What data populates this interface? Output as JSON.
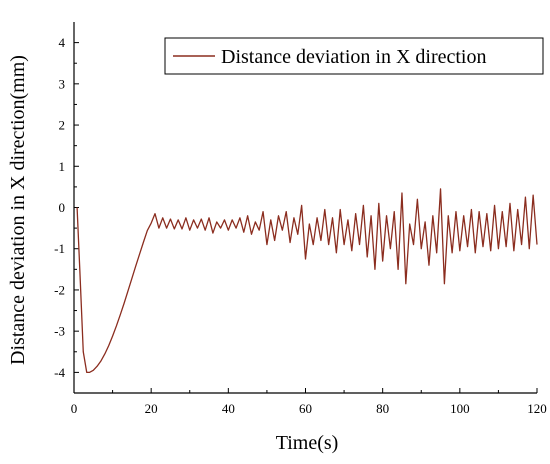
{
  "chart_data": {
    "type": "line",
    "title": "",
    "xlabel": "Time(s)",
    "ylabel": "Distance deviation in X direction(mm)",
    "xlim": [
      0,
      120
    ],
    "ylim": [
      -4.5,
      4.5
    ],
    "xticks": [
      0,
      20,
      40,
      60,
      80,
      100,
      120
    ],
    "yticks": [
      -4,
      -3,
      -2,
      -1,
      0,
      1,
      2,
      3,
      4
    ],
    "grid": false,
    "legend_position": "top-right",
    "series": [
      {
        "name": "Distance deviation in X direction",
        "color": "#8b2d1f",
        "x": [
          0.8,
          1.5,
          2.4,
          3.3,
          4.0,
          5.0,
          6.0,
          7.0,
          8.0,
          9.0,
          10.0,
          11.0,
          12.0,
          13.0,
          14.0,
          15.0,
          16.0,
          17.0,
          18.0,
          19.0,
          20.0,
          21.0,
          22.0,
          23.0,
          24.0,
          25.0,
          26.0,
          27.0,
          28.0,
          29.0,
          30.0,
          31.0,
          32.0,
          33.0,
          34.0,
          35.0,
          36.0,
          37.0,
          38.0,
          39.0,
          40.0,
          41.0,
          42.0,
          43.0,
          44.0,
          45.0,
          46.0,
          47.0,
          48.0,
          49.0,
          50.0,
          51.0,
          52.0,
          53.0,
          54.0,
          55.0,
          56.0,
          57.0,
          58.0,
          59.0,
          60.0,
          61.0,
          62.0,
          63.0,
          64.0,
          65.0,
          66.0,
          67.0,
          68.0,
          69.0,
          70.0,
          71.0,
          72.0,
          73.0,
          74.0,
          75.0,
          76.0,
          77.0,
          78.0,
          79.0,
          80.0,
          81.0,
          82.0,
          83.0,
          84.0,
          85.0,
          86.0,
          87.0,
          88.0,
          89.0,
          90.0,
          91.0,
          92.0,
          93.0,
          94.0,
          95.0,
          96.0,
          97.0,
          98.0,
          99.0,
          100.0,
          101.0,
          102.0,
          103.0,
          104.0,
          105.0,
          106.0,
          107.0,
          108.0,
          109.0,
          110.0,
          111.0,
          112.0,
          113.0,
          114.0,
          115.0,
          116.0,
          117.0,
          118.0,
          119.0,
          120.0
        ],
        "y": [
          0,
          -1.5,
          -3.5,
          -4.0,
          -4.0,
          -3.95,
          -3.85,
          -3.72,
          -3.55,
          -3.35,
          -3.12,
          -2.87,
          -2.6,
          -2.32,
          -2.02,
          -1.72,
          -1.42,
          -1.13,
          -0.84,
          -0.56,
          -0.38,
          -0.15,
          -0.5,
          -0.25,
          -0.5,
          -0.28,
          -0.52,
          -0.3,
          -0.52,
          -0.25,
          -0.55,
          -0.3,
          -0.5,
          -0.28,
          -0.55,
          -0.25,
          -0.62,
          -0.35,
          -0.5,
          -0.3,
          -0.55,
          -0.3,
          -0.5,
          -0.25,
          -0.6,
          -0.2,
          -0.65,
          -0.35,
          -0.55,
          -0.1,
          -0.9,
          -0.3,
          -0.8,
          -0.2,
          -0.55,
          -0.1,
          -0.85,
          -0.25,
          -0.65,
          0.05,
          -1.25,
          -0.4,
          -0.9,
          -0.25,
          -0.8,
          -0.05,
          -0.9,
          -0.25,
          -1.1,
          -0.05,
          -0.9,
          -0.3,
          -1.05,
          -0.15,
          -0.9,
          0.05,
          -1.2,
          -0.2,
          -1.5,
          0.1,
          -1.3,
          -0.2,
          -1.0,
          -0.1,
          -1.5,
          0.35,
          -1.85,
          -0.4,
          -0.9,
          0.2,
          -1.0,
          -0.35,
          -1.4,
          -0.2,
          -1.1,
          0.45,
          -1.85,
          -0.2,
          -1.1,
          -0.1,
          -1.05,
          -0.2,
          -0.95,
          -0.05,
          -1.1,
          -0.1,
          -0.95,
          -0.15,
          -1.05,
          0.05,
          -1.0,
          -0.1,
          -0.95,
          0.1,
          -1.05,
          -0.05,
          -0.9,
          0.25,
          -1.0,
          0.3,
          -0.9
        ]
      }
    ]
  }
}
